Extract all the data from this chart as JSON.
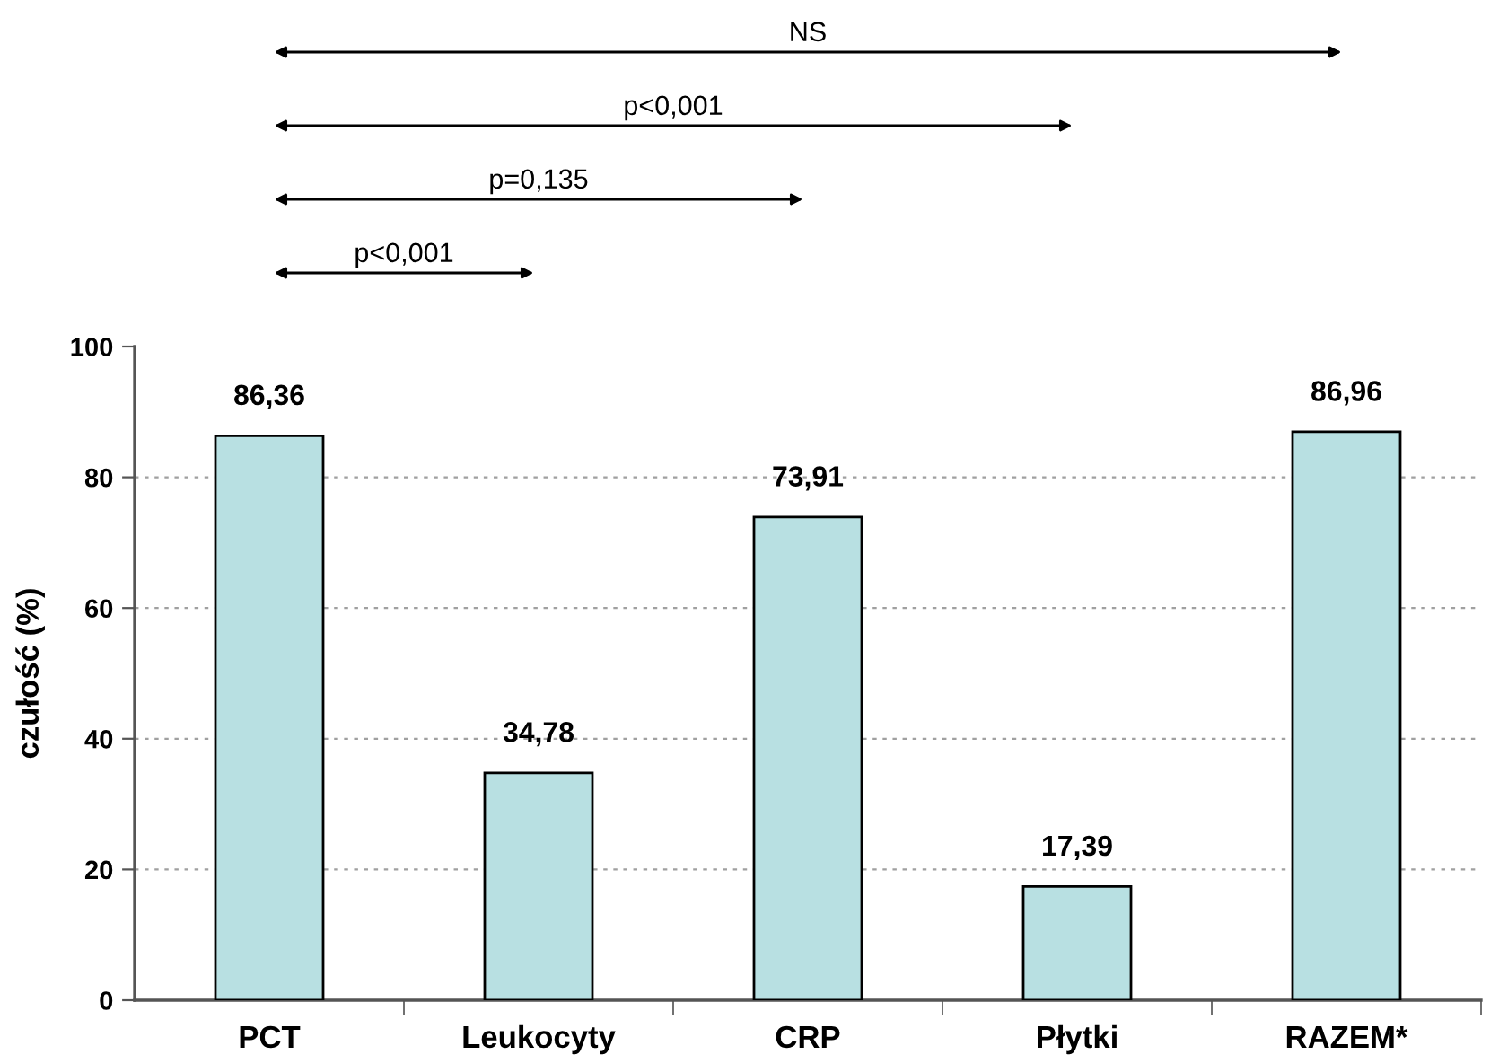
{
  "chart_data": {
    "type": "bar",
    "ylabel": "czułość (%)",
    "categories": [
      "PCT",
      "Leukocyty",
      "CRP",
      "Płytki",
      "RAZEM*"
    ],
    "values": [
      86.36,
      34.78,
      73.91,
      17.39,
      86.96
    ],
    "value_labels": [
      "86,36",
      "34,78",
      "73,91",
      "17,39",
      "86,96"
    ],
    "color": "#b8e0e2",
    "ylim": [
      0,
      100
    ],
    "yticks": [
      0,
      20,
      40,
      60,
      80,
      100
    ],
    "grid": "y",
    "annotations": [
      "NS",
      "p<0,001",
      "p=0,135",
      "p<0,001"
    ]
  }
}
